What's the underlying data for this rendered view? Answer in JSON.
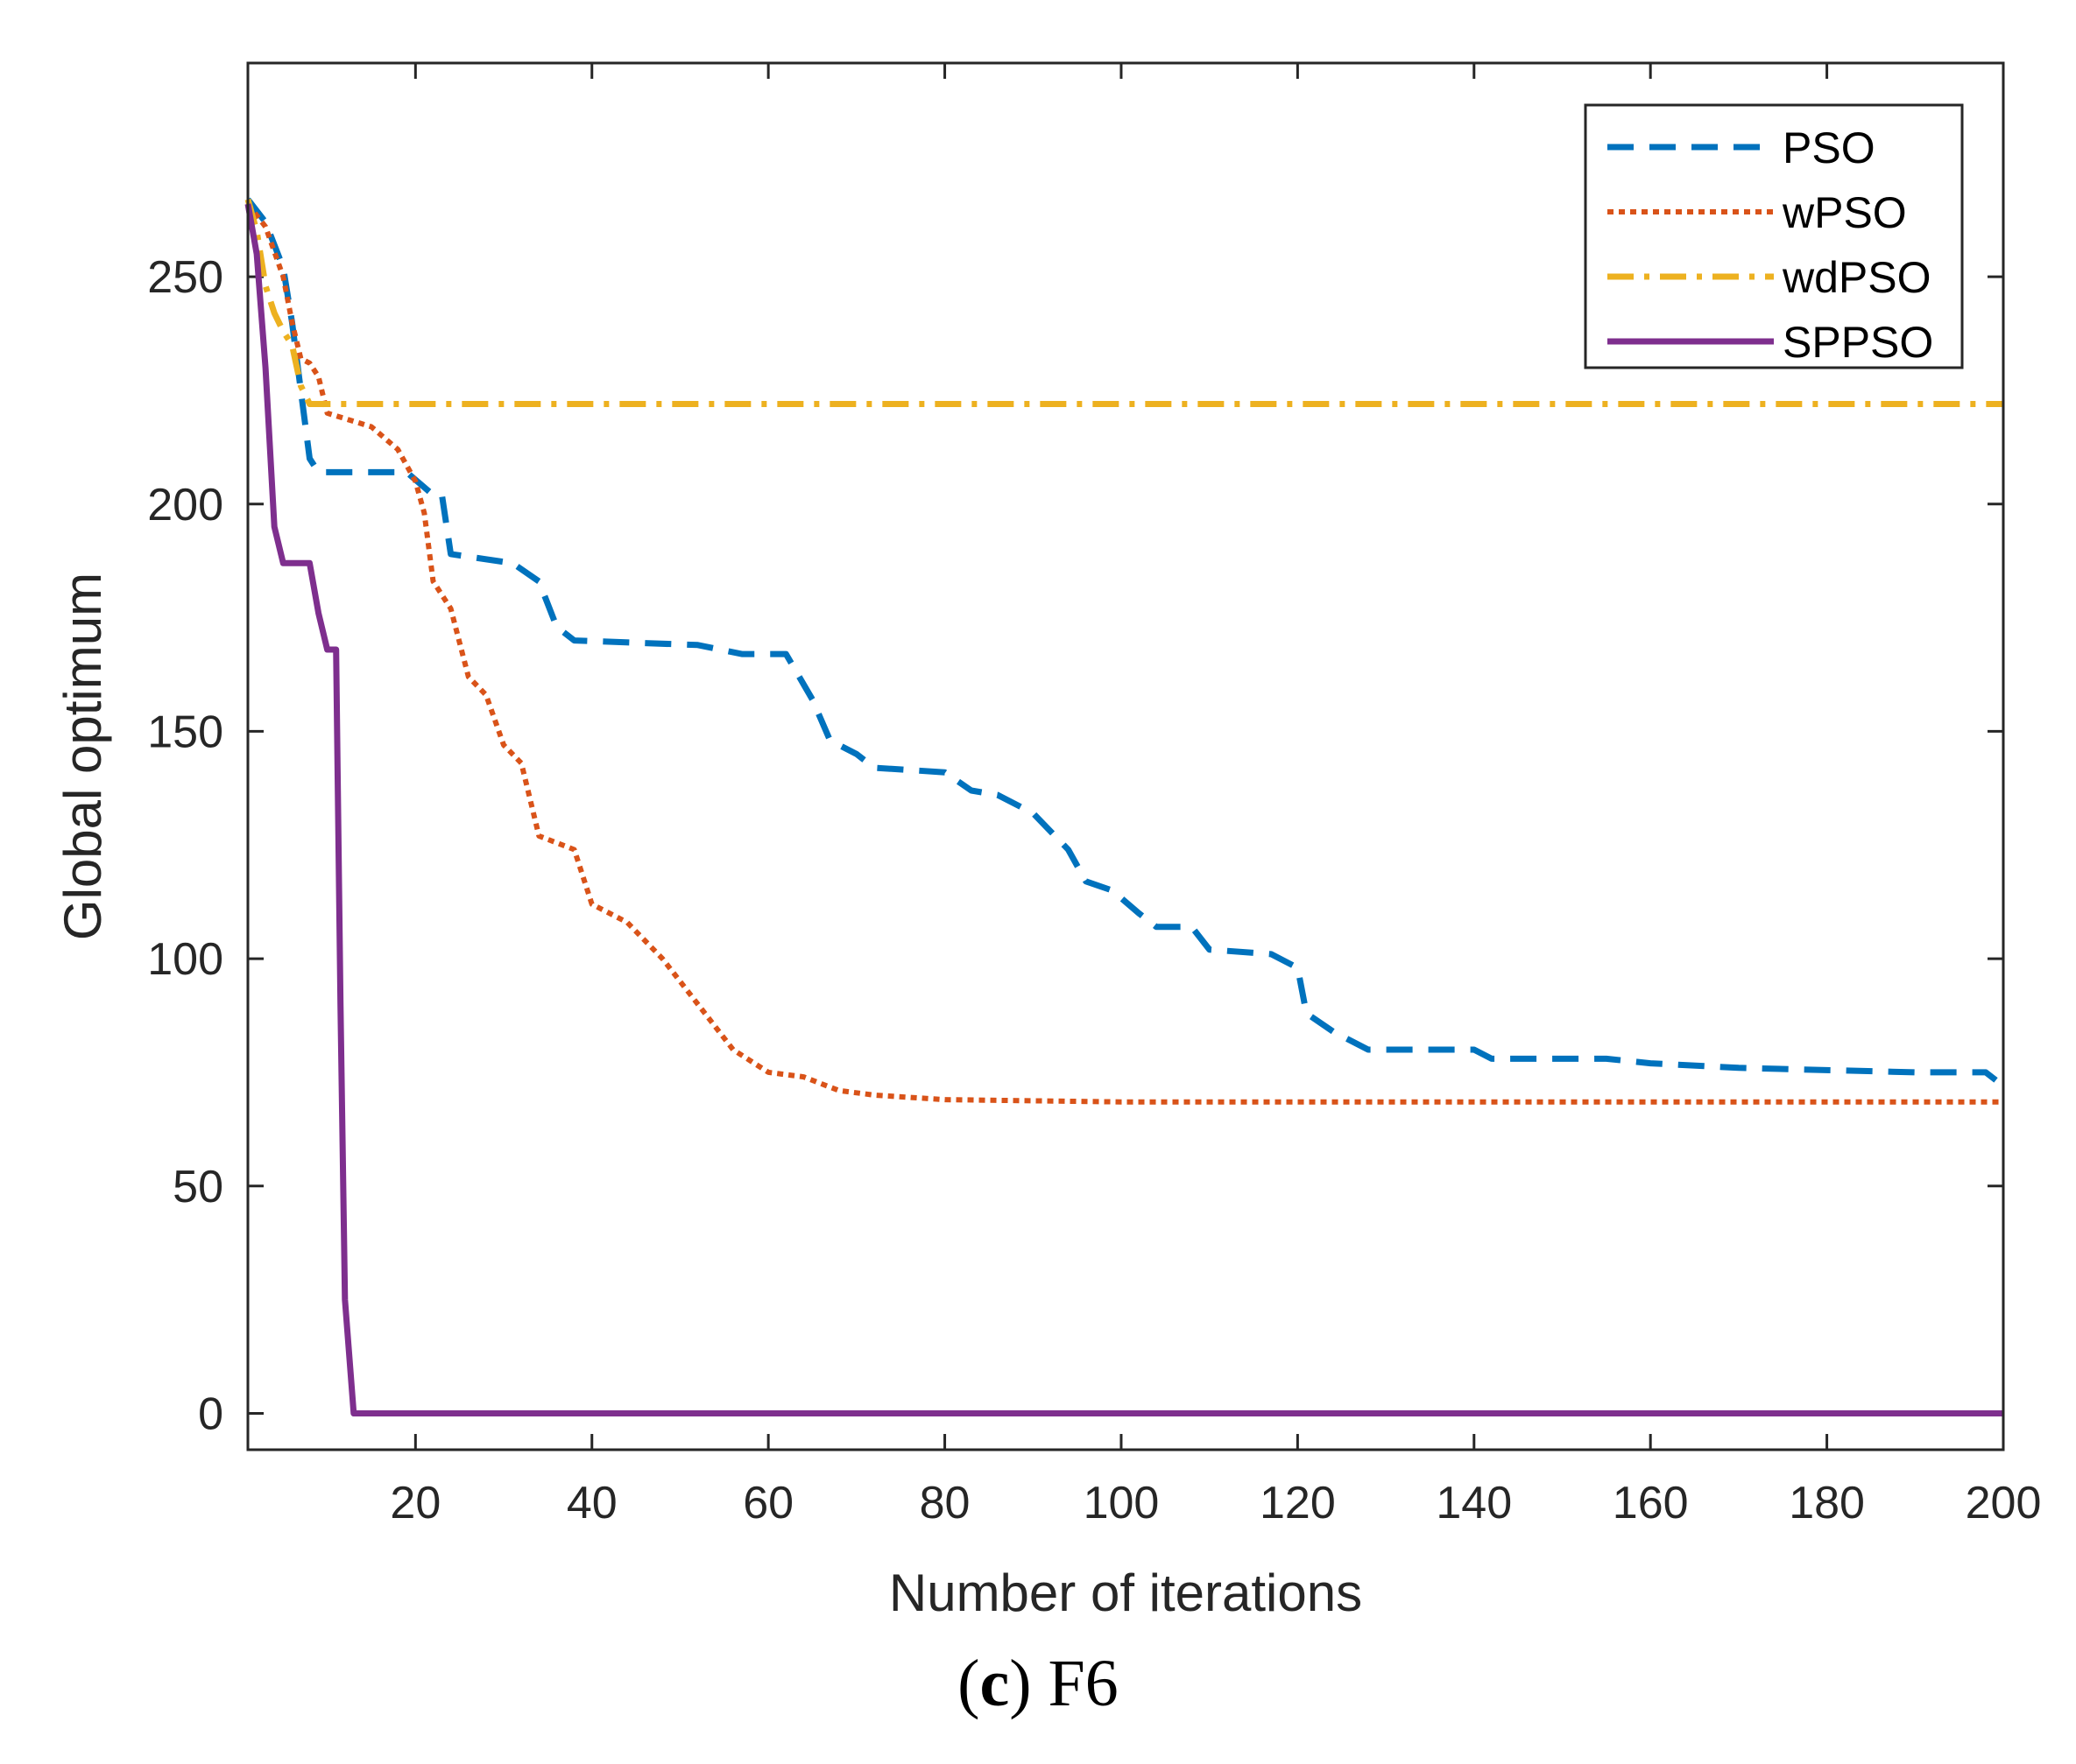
{
  "chart_data": {
    "type": "line",
    "title": "",
    "xlabel": "Number of iterations",
    "ylabel": "Global optimum",
    "xlim": [
      1,
      200
    ],
    "ylim": [
      -8,
      297
    ],
    "xticks": [
      20,
      40,
      60,
      80,
      100,
      120,
      140,
      160,
      180,
      200
    ],
    "yticks": [
      0,
      50,
      100,
      150,
      200,
      250
    ],
    "legend_position": "top-right",
    "series": [
      {
        "name": "PSO",
        "color": "#0072BD",
        "style": "dashed",
        "points": [
          [
            1,
            267
          ],
          [
            3,
            262
          ],
          [
            5,
            252
          ],
          [
            6,
            240
          ],
          [
            7,
            225
          ],
          [
            8,
            210
          ],
          [
            9,
            207
          ],
          [
            19,
            207
          ],
          [
            22,
            202
          ],
          [
            23,
            202
          ],
          [
            24,
            189
          ],
          [
            31,
            187
          ],
          [
            34,
            183
          ],
          [
            36,
            173
          ],
          [
            38,
            170
          ],
          [
            52,
            169
          ],
          [
            57,
            167
          ],
          [
            62,
            167
          ],
          [
            65,
            157
          ],
          [
            67,
            148
          ],
          [
            70,
            145
          ],
          [
            72,
            142
          ],
          [
            80,
            141
          ],
          [
            83,
            137
          ],
          [
            86,
            136
          ],
          [
            90,
            132
          ],
          [
            94,
            124
          ],
          [
            96,
            117
          ],
          [
            99,
            115
          ],
          [
            102,
            110
          ],
          [
            104,
            107
          ],
          [
            108,
            107
          ],
          [
            110,
            102
          ],
          [
            117,
            101
          ],
          [
            120,
            98
          ],
          [
            121,
            88
          ],
          [
            124,
            84
          ],
          [
            128,
            80
          ],
          [
            140,
            80
          ],
          [
            142,
            78
          ],
          [
            155,
            78
          ],
          [
            160,
            77
          ],
          [
            170,
            76
          ],
          [
            190,
            75
          ],
          [
            198,
            75
          ],
          [
            200,
            72
          ]
        ]
      },
      {
        "name": "wPSO",
        "color": "#D95319",
        "style": "dotted",
        "points": [
          [
            1,
            266
          ],
          [
            3,
            261
          ],
          [
            5,
            250
          ],
          [
            6,
            240
          ],
          [
            7,
            232
          ],
          [
            8,
            231
          ],
          [
            9,
            228
          ],
          [
            10,
            220
          ],
          [
            15,
            217
          ],
          [
            18,
            212
          ],
          [
            20,
            205
          ],
          [
            21,
            198
          ],
          [
            22,
            183
          ],
          [
            24,
            177
          ],
          [
            26,
            162
          ],
          [
            28,
            158
          ],
          [
            30,
            147
          ],
          [
            32,
            143
          ],
          [
            34,
            127
          ],
          [
            38,
            124
          ],
          [
            40,
            112
          ],
          [
            44,
            108
          ],
          [
            48,
            100
          ],
          [
            52,
            90
          ],
          [
            56,
            80
          ],
          [
            60,
            75
          ],
          [
            64,
            74
          ],
          [
            68,
            71
          ],
          [
            72,
            70
          ],
          [
            80,
            69
          ],
          [
            100,
            68.5
          ],
          [
            120,
            68.5
          ],
          [
            200,
            68.5
          ]
        ]
      },
      {
        "name": "wdPSO",
        "color": "#EDB120",
        "style": "dashdot",
        "points": [
          [
            1,
            267
          ],
          [
            2,
            260
          ],
          [
            3,
            248
          ],
          [
            4,
            242
          ],
          [
            5,
            238
          ],
          [
            6,
            235
          ],
          [
            7,
            226
          ],
          [
            8,
            222
          ],
          [
            200,
            222
          ]
        ]
      },
      {
        "name": "SPPSO",
        "color": "#7E2F8E",
        "style": "solid",
        "points": [
          [
            1,
            266
          ],
          [
            2,
            255
          ],
          [
            3,
            230
          ],
          [
            4,
            195
          ],
          [
            5,
            187
          ],
          [
            8,
            187
          ],
          [
            9,
            176
          ],
          [
            10,
            168
          ],
          [
            11,
            168
          ],
          [
            11.5,
            90
          ],
          [
            12,
            25
          ],
          [
            13,
            0
          ],
          [
            200,
            0
          ]
        ]
      }
    ]
  },
  "caption": {
    "label": "c",
    "text": " F6"
  }
}
